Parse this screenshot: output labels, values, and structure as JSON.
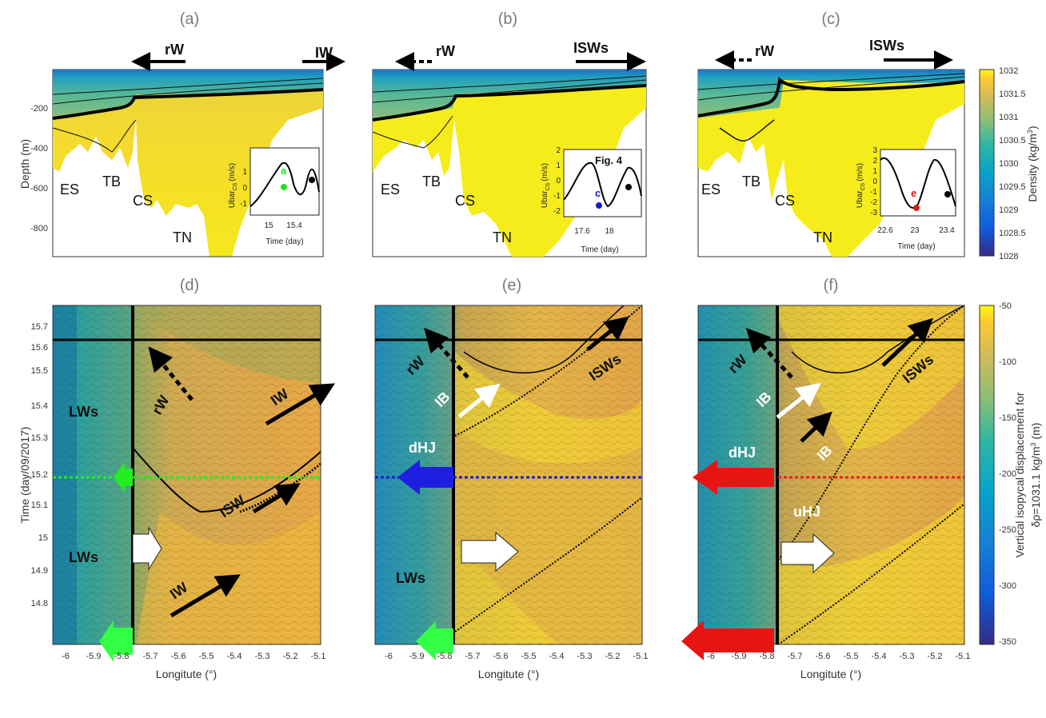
{
  "chart_data": [
    {
      "type": "heatmap",
      "panel": "(a)",
      "ylabel": "Depth (m)",
      "yticks": [
        "-200",
        "-400",
        "-600",
        "-800"
      ],
      "top_annotations": [
        "rW",
        "IW"
      ],
      "regions": [
        "ES",
        "TB",
        "CS",
        "TN"
      ],
      "inset": {
        "ylabel": "Ubar",
        "ylabel_sub": "CS",
        "ylabel_unit": "(m/s)",
        "xlabel": "Time (day)",
        "yticks": [
          "1",
          "0",
          "-1"
        ],
        "xticks": [
          "15",
          "15.4"
        ],
        "marker_label": "a",
        "marker_color": "#22dd22"
      }
    },
    {
      "type": "heatmap",
      "panel": "(b)",
      "top_annotations": [
        "rW",
        "ISWs"
      ],
      "regions": [
        "ES",
        "TB",
        "CS",
        "TN"
      ],
      "inset": {
        "ylabel": "Ubar",
        "ylabel_sub": "CS",
        "ylabel_unit": "(m/s)",
        "xlabel": "Time (day)",
        "title": "Fig. 4",
        "yticks": [
          "2",
          "1",
          "0",
          "-1",
          "-2"
        ],
        "xticks": [
          "17.6",
          "18"
        ],
        "marker_label": "c",
        "marker_color": "#1a1ad0"
      }
    },
    {
      "type": "heatmap",
      "panel": "(c)",
      "top_annotations": [
        "rW",
        "ISWs"
      ],
      "regions": [
        "ES",
        "TB",
        "CS",
        "TN"
      ],
      "colorbar": {
        "label": "Density (kg/m",
        "label_sup": "3",
        "label_end": ")",
        "ticks": [
          "1032",
          "1031.5",
          "1031",
          "1030.5",
          "1030",
          "1029.5",
          "1029",
          "1028.5",
          "1028"
        ]
      },
      "inset": {
        "ylabel": "Ubar",
        "ylabel_sub": "CS",
        "ylabel_unit": "(m/s)",
        "xlabel": "Time (day)",
        "yticks": [
          "3",
          "2",
          "1",
          "0",
          "-1",
          "-2",
          "-3"
        ],
        "xticks": [
          "22.6",
          "23",
          "23.4"
        ],
        "marker_label": "e",
        "marker_color": "#dd1a1a"
      }
    },
    {
      "type": "heatmap",
      "panel": "(d)",
      "xlabel": "Longitute (°)",
      "ylabel": "Time (day/09/2017)",
      "xticks": [
        "-6",
        "-5.9",
        "-5.8",
        "-5.7",
        "-5.6",
        "-5.5",
        "-5.4",
        "-5.3",
        "-5.2",
        "-5.1"
      ],
      "yticks": [
        "15.7",
        "15.6",
        "15.5",
        "15.4",
        "15.3",
        "15.2",
        "15.1",
        "15",
        "14.9",
        "14.8"
      ],
      "annotations": [
        "LWs",
        "LWs",
        "rW",
        "IW",
        "ISW",
        "IW"
      ]
    },
    {
      "type": "heatmap",
      "panel": "(e)",
      "xlabel": "Longitute (°)",
      "xticks": [
        "-6",
        "-5.9",
        "-5.8",
        "-5.7",
        "-5.6",
        "-5.5",
        "-5.4",
        "-5.3",
        "-5.2",
        "-5.1"
      ],
      "annotations": [
        "rW",
        "ISWs",
        "IB",
        "dHJ",
        "LWs"
      ]
    },
    {
      "type": "heatmap",
      "panel": "(f)",
      "xlabel": "Longitute (°)",
      "xticks": [
        "-6",
        "-5.9",
        "-5.8",
        "-5.7",
        "-5.6",
        "-5.5",
        "-5.4",
        "-5.3",
        "-5.2",
        "-5.1"
      ],
      "annotations": [
        "rW",
        "ISWs",
        "IB",
        "IB",
        "dHJ",
        "uHJ"
      ],
      "colorbar": {
        "label1": "Vertical isopycal displacement for",
        "label2_pre": "δρ=1031.1 kg/m",
        "label2_sup": "3",
        "label2_post": " (m)",
        "ticks": [
          "-50",
          "-100",
          "-150",
          "-200",
          "-250",
          "-300",
          "-350"
        ]
      }
    }
  ]
}
